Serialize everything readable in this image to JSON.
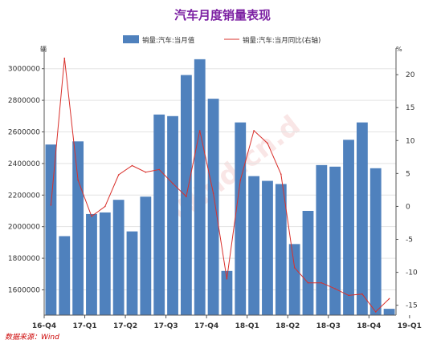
{
  "chart_data": {
    "type": "bar",
    "title": "汽车月度销量表现",
    "colors": {
      "bar": "#4F81BD",
      "line": "#D9302B",
      "title": "#7B1FA2",
      "source": "#CC0000"
    },
    "legend": {
      "placement": "top",
      "bar_label": "销量:汽车:当月值",
      "line_label": "销量:汽车:当月同比(右轴)"
    },
    "y_left": {
      "unit_label": "辆",
      "range": [
        1440000,
        3100000
      ],
      "ticks": [
        1600000,
        1800000,
        2000000,
        2200000,
        2400000,
        2600000,
        2800000,
        3000000
      ]
    },
    "y_right": {
      "unit_label": "%",
      "range": [
        -16.5,
        23.3
      ],
      "ticks": [
        20,
        15,
        10,
        5,
        0,
        -5,
        -10,
        -15
      ]
    },
    "x_labels": [
      "16-Q4",
      "17-Q1",
      "17-Q2",
      "17-Q3",
      "17-Q4",
      "18-Q1",
      "18-Q2",
      "18-Q3",
      "18-Q4",
      "19-Q1"
    ],
    "x_label_index": [
      0,
      3,
      6,
      9,
      12,
      15,
      18,
      21,
      24,
      27
    ],
    "grid": true,
    "series": [
      {
        "name": "销量:汽车:当月值",
        "type": "bar",
        "values": [
          2520000,
          1940000,
          2540000,
          2080000,
          2090000,
          2170000,
          1970000,
          2190000,
          2710000,
          2700000,
          2960000,
          3060000,
          2810000,
          1720000,
          2660000,
          2320000,
          2290000,
          2270000,
          1890000,
          2100000,
          2390000,
          2380000,
          2550000,
          2660000,
          2370000,
          1480000
        ]
      },
      {
        "name": "销量:汽车:当月同比(右轴)",
        "type": "line",
        "axis": "right",
        "values": [
          0.2,
          22.5,
          4.0,
          -1.5,
          0.0,
          4.8,
          6.2,
          5.2,
          5.6,
          3.5,
          1.5,
          11.5,
          2.0,
          -11.0,
          4.0,
          11.5,
          9.6,
          4.9,
          -9.3,
          -11.6,
          -11.6,
          -12.5,
          -13.5,
          -13.3,
          -16.0,
          -14.0
        ]
      }
    ],
    "source": "数据来源：Wind",
    "watermark": "Wind.cn.d"
  }
}
